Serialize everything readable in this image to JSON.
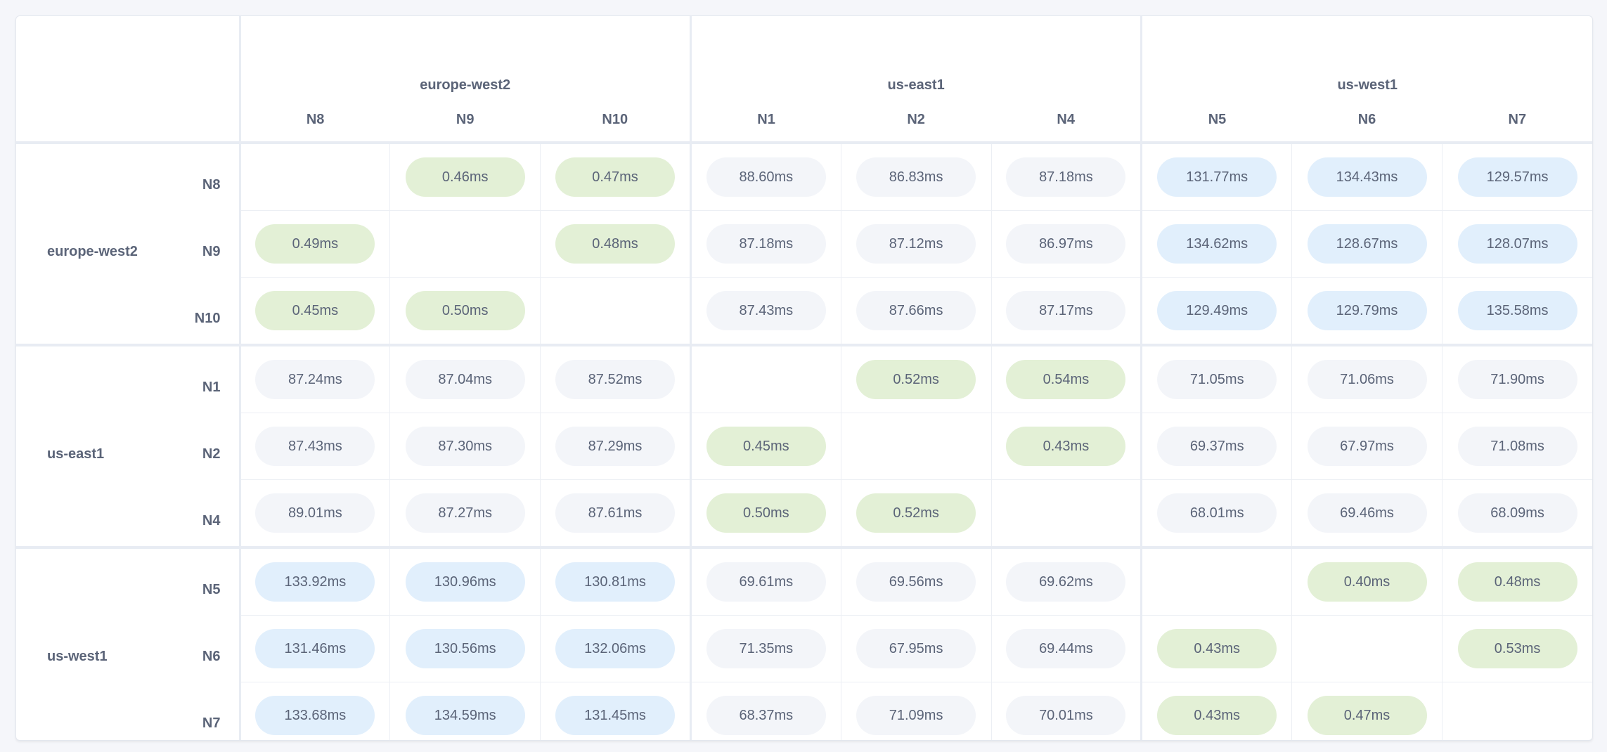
{
  "colors": {
    "local": "#e3f0d6",
    "mid": "#f3f5f9",
    "far": "#e1effc",
    "text": "#5b6478"
  },
  "regions": [
    {
      "name": "europe-west2",
      "nodes": [
        "N8",
        "N9",
        "N10"
      ]
    },
    {
      "name": "us-east1",
      "nodes": [
        "N1",
        "N2",
        "N4"
      ]
    },
    {
      "name": "us-west1",
      "nodes": [
        "N5",
        "N6",
        "N7"
      ]
    }
  ],
  "matrix": [
    [
      "",
      "0.46ms",
      "0.47ms",
      "88.60ms",
      "86.83ms",
      "87.18ms",
      "131.77ms",
      "134.43ms",
      "129.57ms"
    ],
    [
      "0.49ms",
      "",
      "0.48ms",
      "87.18ms",
      "87.12ms",
      "86.97ms",
      "134.62ms",
      "128.67ms",
      "128.07ms"
    ],
    [
      "0.45ms",
      "0.50ms",
      "",
      "87.43ms",
      "87.66ms",
      "87.17ms",
      "129.49ms",
      "129.79ms",
      "135.58ms"
    ],
    [
      "87.24ms",
      "87.04ms",
      "87.52ms",
      "",
      "0.52ms",
      "0.54ms",
      "71.05ms",
      "71.06ms",
      "71.90ms"
    ],
    [
      "87.43ms",
      "87.30ms",
      "87.29ms",
      "0.45ms",
      "",
      "0.43ms",
      "69.37ms",
      "67.97ms",
      "71.08ms"
    ],
    [
      "89.01ms",
      "87.27ms",
      "87.61ms",
      "0.50ms",
      "0.52ms",
      "",
      "68.01ms",
      "69.46ms",
      "68.09ms"
    ],
    [
      "133.92ms",
      "130.96ms",
      "130.81ms",
      "69.61ms",
      "69.56ms",
      "69.62ms",
      "",
      "0.40ms",
      "0.48ms"
    ],
    [
      "131.46ms",
      "130.56ms",
      "132.06ms",
      "71.35ms",
      "67.95ms",
      "69.44ms",
      "0.43ms",
      "",
      "0.53ms"
    ],
    [
      "133.68ms",
      "134.59ms",
      "131.45ms",
      "68.37ms",
      "71.09ms",
      "70.01ms",
      "0.43ms",
      "0.47ms",
      ""
    ]
  ]
}
